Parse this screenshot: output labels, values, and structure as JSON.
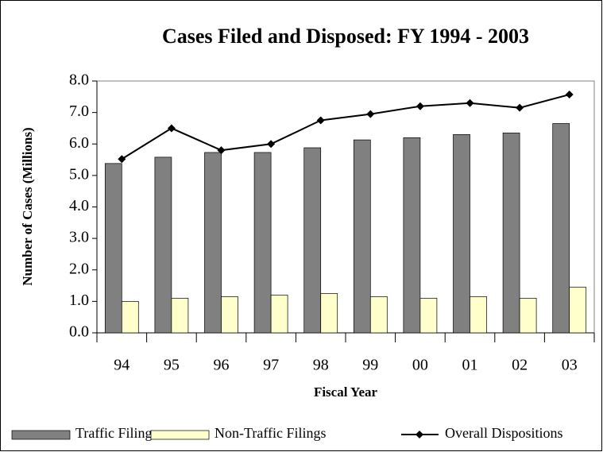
{
  "chart_data": {
    "type": "bar",
    "title": "Cases Filed and Disposed: FY 1994 - 2003",
    "x_label": "Fiscal Year",
    "y_label": "Number of Cases (Millions)",
    "categories": [
      "94",
      "95",
      "96",
      "97",
      "98",
      "99",
      "00",
      "01",
      "02",
      "03"
    ],
    "series": [
      {
        "name": "Traffic Filings",
        "type": "bar",
        "color": "#808080",
        "values": [
          5.38,
          5.58,
          5.73,
          5.73,
          5.88,
          6.13,
          6.2,
          6.3,
          6.35,
          6.65
        ]
      },
      {
        "name": "Non-Traffic Filings",
        "type": "bar",
        "color": "#ffffcc",
        "values": [
          1.0,
          1.1,
          1.15,
          1.2,
          1.25,
          1.15,
          1.1,
          1.15,
          1.1,
          1.45
        ]
      },
      {
        "name": "Overall Dispositions",
        "type": "line",
        "color": "#000000",
        "values": [
          5.52,
          6.5,
          5.8,
          6.0,
          6.75,
          6.95,
          7.2,
          7.3,
          7.15,
          7.57
        ]
      }
    ],
    "ylim": [
      0,
      8
    ],
    "yticks": [
      {
        "value": 0,
        "label": "0.0"
      },
      {
        "value": 1,
        "label": "1.0"
      },
      {
        "value": 2,
        "label": "2.0"
      },
      {
        "value": 3,
        "label": "3.0"
      },
      {
        "value": 4,
        "label": "4.0"
      },
      {
        "value": 5,
        "label": "5.0"
      },
      {
        "value": 6,
        "label": "6.0"
      },
      {
        "value": 7,
        "label": "7.0"
      },
      {
        "value": 8,
        "label": "8.0"
      }
    ],
    "grid": false,
    "legend": "bottom"
  }
}
